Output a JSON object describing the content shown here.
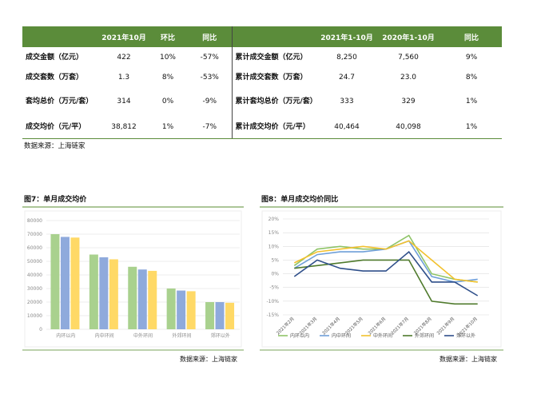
{
  "table": {
    "left_header": [
      "2021年10月",
      "环比",
      "同比"
    ],
    "right_header": [
      "2021年1-10月",
      "2020年1-10月",
      "同比"
    ],
    "rows": [
      {
        "left": [
          "成交金额（亿元）",
          "422",
          "10%",
          "-57%"
        ],
        "right": [
          "累计成交金额（亿元）",
          "8,250",
          "7,560",
          "9%"
        ]
      },
      {
        "left": [
          "成交套数（万套）",
          "1.3",
          "8%",
          "-53%"
        ],
        "right": [
          "累计成交套数（万套）",
          "24.7",
          "23.0",
          "8%"
        ]
      },
      {
        "left": [
          "套均总价（万元/套）",
          "314",
          "0%",
          "-9%"
        ],
        "right": [
          "累计套均总价（万元/套）",
          "333",
          "329",
          "1%"
        ]
      },
      {
        "left": [
          "成交均价（元/平）",
          "38,812",
          "1%",
          "-7%"
        ],
        "right": [
          "累计成交均价（元/平）",
          "40,464",
          "40,098",
          "1%"
        ]
      }
    ]
  },
  "source": "数据来源：上海链家",
  "chart_data": [
    {
      "type": "bar",
      "title": "图7：单月成交均价",
      "source": "数据来源：上海链家",
      "categories": [
        "内环以内",
        "内中环间",
        "中外环间",
        "外郊环间",
        "郊环以外"
      ],
      "series": [
        {
          "color": "#a9d18e",
          "values": [
            70000,
            55000,
            46000,
            30000,
            20000
          ]
        },
        {
          "color": "#8faadc",
          "values": [
            68000,
            53000,
            44000,
            28500,
            20000
          ]
        },
        {
          "color": "#ffd966",
          "values": [
            67500,
            51500,
            43000,
            28000,
            19500
          ]
        }
      ],
      "ylim": [
        0,
        80000
      ],
      "yticks": [
        0,
        10000,
        20000,
        30000,
        40000,
        50000,
        60000,
        70000,
        80000
      ],
      "grid": true
    },
    {
      "type": "line",
      "title": "图8：单月成交均价同比",
      "source": "数据来源：上海链家",
      "categories": [
        "2021年2月",
        "2021年3月",
        "2021年4月",
        "2021年5月",
        "2021年6月",
        "2021年7月",
        "2021年8月",
        "2021年9月",
        "2021年10月"
      ],
      "series": [
        {
          "name": "内环以内",
          "color": "#8fc468",
          "values": [
            3,
            9,
            10,
            9,
            9,
            14,
            0,
            -2,
            -3
          ]
        },
        {
          "name": "内中环间",
          "color": "#6f9fd8",
          "values": [
            2,
            7,
            8,
            8,
            9,
            12,
            -1,
            -3,
            -2
          ]
        },
        {
          "name": "中外环间",
          "color": "#f2c12e",
          "values": [
            4,
            8,
            9,
            10,
            9,
            12,
            5,
            -2,
            -3
          ]
        },
        {
          "name": "外郊环间",
          "color": "#4f7a2c",
          "values": [
            2,
            3,
            4,
            5,
            5,
            5,
            -10,
            -11,
            -11
          ]
        },
        {
          "name": "郊环以外",
          "color": "#2f4f8a",
          "values": [
            -1,
            5,
            2,
            1,
            1,
            8,
            -3,
            -3,
            -8
          ]
        }
      ],
      "ylim": [
        -15,
        20
      ],
      "yticks": [
        {
          "value": -15,
          "label": "-15%"
        },
        {
          "value": -10,
          "label": "-10%"
        },
        {
          "value": -5,
          "label": "-5%"
        },
        {
          "value": 0,
          "label": "0%"
        },
        {
          "value": 5,
          "label": "5%"
        },
        {
          "value": 10,
          "label": "10%"
        },
        {
          "value": 15,
          "label": "15%"
        },
        {
          "value": 20,
          "label": "20%"
        }
      ],
      "grid": true
    }
  ]
}
